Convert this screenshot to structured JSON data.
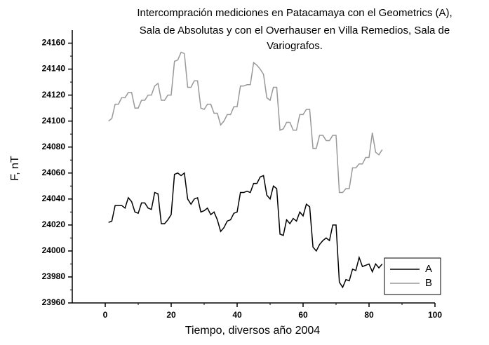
{
  "chart_data": {
    "type": "line",
    "title": [
      "Intercompración mediciones en Patacamaya con el Geometrics (A),",
      "Sala de Absolutas y  con el Overhauser en Villa Remedios, Sala de",
      "Variografos."
    ],
    "xlabel": "Tiempo, diversos año 2004",
    "ylabel": "F,  nT",
    "x": [
      1,
      2,
      3,
      4,
      5,
      6,
      7,
      8,
      9,
      10,
      11,
      12,
      13,
      14,
      15,
      16,
      17,
      18,
      19,
      20,
      21,
      22,
      23,
      24,
      25,
      26,
      27,
      28,
      29,
      30,
      31,
      32,
      33,
      34,
      35,
      36,
      37,
      38,
      39,
      40,
      41,
      42,
      43,
      44,
      45,
      46,
      47,
      48,
      49,
      50,
      51,
      52,
      53,
      54,
      55,
      56,
      57,
      58,
      59,
      60,
      61,
      62,
      63,
      64,
      65,
      66,
      67,
      68,
      69,
      70,
      71,
      72,
      73,
      74,
      75,
      76,
      77,
      78,
      79,
      80,
      81,
      82,
      83,
      84
    ],
    "series": [
      {
        "name": "A",
        "color": "#000000",
        "values": [
          24022,
          24023,
          24035,
          24035,
          24035,
          24033,
          24041,
          24038,
          24030,
          24029,
          24037,
          24037,
          24033,
          24032,
          24045,
          24044,
          24021,
          24021,
          24024,
          24028,
          24059,
          24060,
          24058,
          24060,
          24040,
          24036,
          24040,
          24041,
          24030,
          24031,
          24033,
          24028,
          24030,
          24024,
          24015,
          24018,
          24023,
          24024,
          24029,
          24030,
          24045,
          24045,
          24046,
          24045,
          24052,
          24052,
          24057,
          24058,
          24043,
          24040,
          24050,
          24048,
          24013,
          24012,
          24024,
          24021,
          24025,
          24023,
          24030,
          24027,
          24036,
          24034,
          24003,
          24000,
          24005,
          24008,
          24010,
          24008,
          24020,
          24020,
          23976,
          23972,
          23978,
          23977,
          23986,
          23985,
          23995,
          23988,
          23989,
          23990,
          23984,
          23990,
          23987,
          23990
        ]
      },
      {
        "name": "B",
        "color": "#999999",
        "values": [
          24100,
          24102,
          24113,
          24113,
          24118,
          24118,
          24122,
          24122,
          24110,
          24110,
          24116,
          24116,
          24120,
          24120,
          24127,
          24129,
          24116,
          24116,
          24120,
          24120,
          24146,
          24147,
          24153,
          24152,
          24126,
          24126,
          24131,
          24131,
          24110,
          24109,
          24113,
          24113,
          24106,
          24106,
          24097,
          24100,
          24105,
          24105,
          24111,
          24111,
          24127,
          24127,
          24128,
          24128,
          24145,
          24143,
          24140,
          24136,
          24118,
          24116,
          24126,
          24126,
          24093,
          24094,
          24099,
          24099,
          24093,
          24093,
          24105,
          24105,
          24109,
          24109,
          24079,
          24079,
          24089,
          24089,
          24085,
          24085,
          24089,
          24089,
          24045,
          24045,
          24048,
          24048,
          24064,
          24064,
          24067,
          24067,
          24072,
          24072,
          24091,
          24076,
          24074,
          24078
        ]
      }
    ],
    "xlim": [
      -10,
      100
    ],
    "xticks": [
      0,
      20,
      40,
      60,
      80,
      100
    ],
    "ylim": [
      23960,
      24170
    ],
    "yticks": [
      23960,
      23980,
      24000,
      24020,
      24040,
      24060,
      24080,
      24100,
      24120,
      24140,
      24160
    ],
    "legend": "lower right"
  }
}
